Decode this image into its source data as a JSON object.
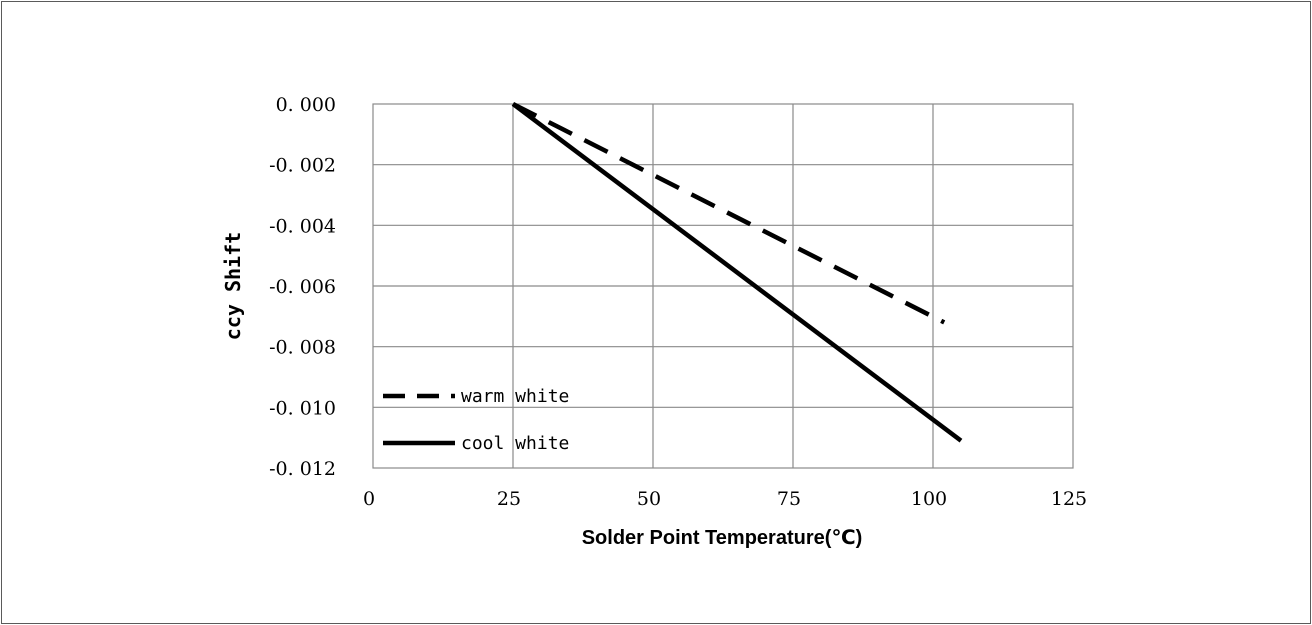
{
  "chart_data": {
    "type": "line",
    "title": "",
    "xlabel": "Solder Point Temperature(℃)",
    "ylabel": "ccy Shift",
    "xlim": [
      0,
      125
    ],
    "ylim": [
      -0.012,
      0.0
    ],
    "x_ticks": [
      "0",
      "25",
      "50",
      "75",
      "100",
      "125"
    ],
    "y_ticks": [
      "0. 000",
      "-0. 002",
      "-0. 004",
      "-0. 006",
      "-0. 008",
      "-0. 010",
      "-0. 012"
    ],
    "grid": true,
    "legend_position": "bottom-left",
    "series": [
      {
        "name": "warm white",
        "style": "dashed",
        "color": "#000000",
        "x": [
          25,
          102
        ],
        "y": [
          0.0,
          -0.0072
        ]
      },
      {
        "name": "cool white",
        "style": "solid",
        "color": "#000000",
        "x": [
          25,
          105
        ],
        "y": [
          0.0,
          -0.0111
        ]
      }
    ]
  }
}
